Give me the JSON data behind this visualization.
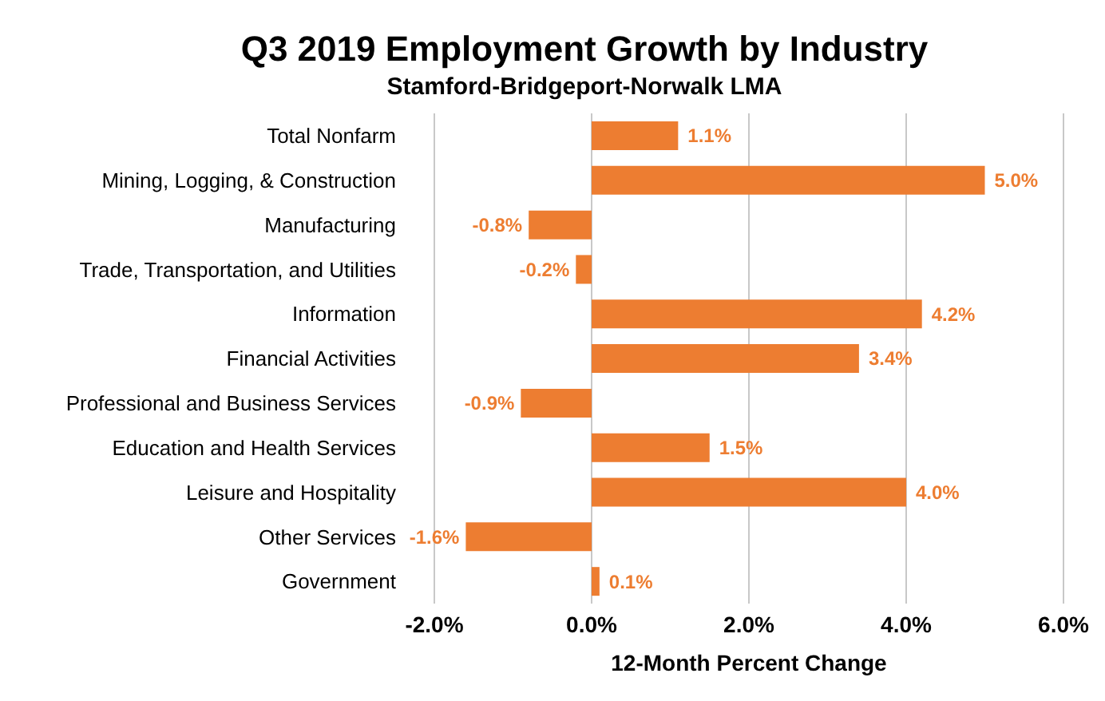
{
  "chart_data": {
    "type": "bar",
    "orientation": "horizontal",
    "title": "Q3 2019 Employment Growth by Industry",
    "subtitle": "Stamford-Bridgeport-Norwalk LMA",
    "xlabel": "12-Month Percent Change",
    "categories": [
      "Total Nonfarm",
      "Mining, Logging, & Construction",
      "Manufacturing",
      "Trade, Transportation, and Utilities",
      "Information",
      "Financial Activities",
      "Professional and Business Services",
      "Education and Health Services",
      "Leisure and Hospitality",
      "Other Services",
      "Government"
    ],
    "values": [
      1.1,
      5.0,
      -0.8,
      -0.2,
      4.2,
      3.4,
      -0.9,
      1.5,
      4.0,
      -1.6,
      0.1
    ],
    "value_labels": [
      "1.1%",
      "5.0%",
      "-0.8%",
      "-0.2%",
      "4.2%",
      "3.4%",
      "-0.9%",
      "1.5%",
      "4.0%",
      "-1.6%",
      "0.1%"
    ],
    "color": "#ed7d31",
    "xlim": [
      -2,
      6
    ],
    "xticks": [
      {
        "value": -2,
        "label": "-2.0%"
      },
      {
        "value": 0,
        "label": "0.0%"
      },
      {
        "value": 2,
        "label": "2.0%"
      },
      {
        "value": 4,
        "label": "4.0%"
      },
      {
        "value": 6,
        "label": "6.0%"
      }
    ],
    "grid": "x"
  }
}
